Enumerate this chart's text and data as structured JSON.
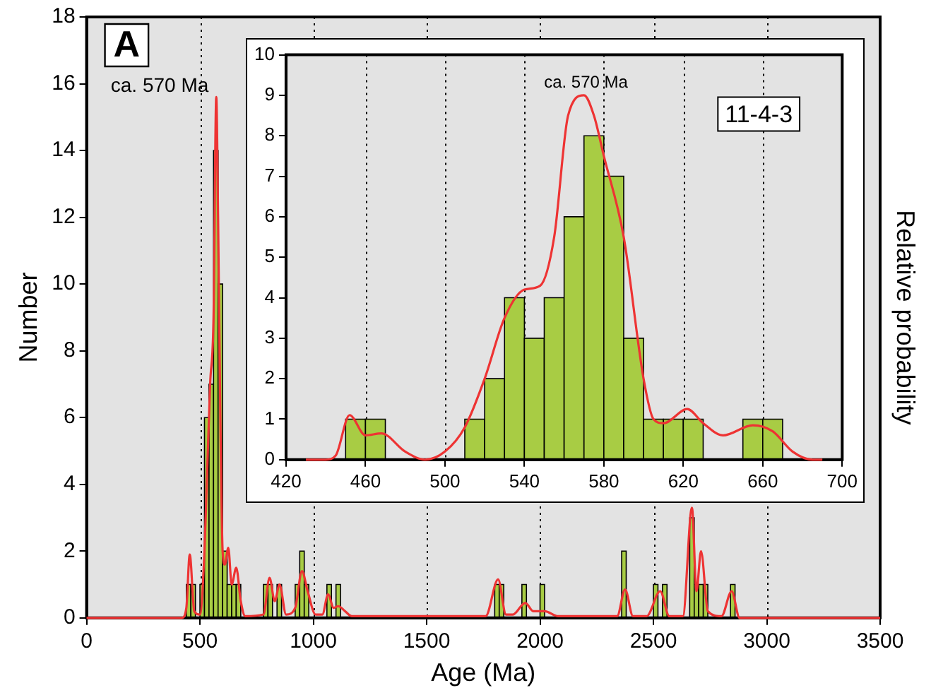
{
  "chart_data": [
    {
      "type": "histogram",
      "xlabel": "Age (Ma)",
      "ylabel": "Number",
      "y2label": "Relative probability",
      "xlim": [
        0,
        3500
      ],
      "xticks": [
        0,
        500,
        1000,
        1500,
        2000,
        2500,
        3000,
        3500
      ],
      "ylim": [
        0,
        18
      ],
      "yticks": [
        0,
        2,
        4,
        6,
        8,
        10,
        12,
        14,
        16,
        18
      ],
      "grid": "x",
      "annotations": [
        "A",
        "ca. 570 Ma"
      ],
      "series": [
        {
          "color": "#a8cc44",
          "bins": [
            440,
            460,
            480,
            500,
            520,
            540,
            560,
            580,
            600,
            620,
            640,
            660,
            680,
            780,
            800,
            820,
            840,
            860,
            920,
            940,
            960,
            980,
            1060,
            1080,
            1100,
            1120,
            1800,
            1820,
            1840,
            1920,
            1940,
            2000,
            2020,
            2360,
            2380,
            2500,
            2520,
            2540,
            2560,
            2660,
            2680,
            2700,
            2720,
            2740,
            2840,
            2860
          ],
          "values": [
            1,
            1,
            0,
            1,
            6,
            7,
            14,
            10,
            2,
            1,
            1,
            1,
            0,
            1,
            1,
            0,
            1,
            0,
            1,
            2,
            1,
            0,
            1,
            0,
            1,
            0,
            1,
            1,
            0,
            1,
            0,
            1,
            0,
            2,
            0,
            1,
            0,
            1,
            0,
            3,
            1,
            1,
            1,
            0,
            1
          ]
        },
        {
          "type": "line",
          "color": "#ee3333",
          "x": [
            0,
            420,
            440,
            455,
            475,
            500,
            520,
            530,
            545,
            560,
            572,
            580,
            590,
            600,
            610,
            625,
            640,
            660,
            680,
            700,
            780,
            807,
            830,
            851,
            880,
            920,
            950,
            975,
            1010,
            1040,
            1065,
            1090,
            1110,
            1140,
            1170,
            1760,
            1815,
            1850,
            1880,
            1935,
            1970,
            2020,
            2080,
            2340,
            2375,
            2410,
            2470,
            2530,
            2570,
            2630,
            2670,
            2690,
            2710,
            2740,
            2800,
            2845,
            2880,
            3500
          ],
          "values": [
            0,
            0,
            0.3,
            1.9,
            0.2,
            0.1,
            2,
            4,
            7,
            9,
            15.6,
            12,
            6,
            2,
            1.6,
            2.1,
            1,
            1.5,
            0.5,
            0.05,
            0.1,
            1.2,
            0.5,
            1,
            0.1,
            0.3,
            1.4,
            0.8,
            0.1,
            0.1,
            0.7,
            0.3,
            0.35,
            0.2,
            0.05,
            0.05,
            1.15,
            0.1,
            0.1,
            0.45,
            0.2,
            0.2,
            0.05,
            0.05,
            0.85,
            0.05,
            0.05,
            0.8,
            0.05,
            0.05,
            3.3,
            0.8,
            2,
            0.2,
            0.05,
            0.8,
            0,
            0
          ]
        }
      ]
    },
    {
      "type": "histogram",
      "xlim": [
        420,
        700
      ],
      "xticks": [
        420,
        460,
        500,
        540,
        580,
        620,
        660,
        700
      ],
      "ylim": [
        0,
        10
      ],
      "yticks": [
        0,
        1,
        2,
        3,
        4,
        5,
        6,
        7,
        8,
        9,
        10
      ],
      "grid": "x",
      "annotations": [
        "ca. 570 Ma",
        "11-4-3"
      ],
      "series": [
        {
          "color": "#a8cc44",
          "bins": [
            450,
            460,
            470,
            510,
            520,
            530,
            540,
            550,
            560,
            570,
            580,
            590,
            600,
            610,
            620,
            630,
            650,
            660,
            670
          ],
          "values": [
            1,
            1,
            0,
            1,
            2,
            4,
            3,
            4,
            6,
            8,
            7,
            3,
            1,
            1,
            1,
            0,
            1,
            1
          ]
        },
        {
          "type": "line",
          "color": "#ee3333",
          "x": [
            430,
            440,
            445,
            452,
            460,
            468,
            480,
            490,
            500,
            510,
            520,
            530,
            540,
            548,
            555,
            562,
            570,
            575,
            580,
            590,
            600,
            605,
            610,
            622,
            630,
            640,
            655,
            665,
            675,
            685,
            690
          ],
          "values": [
            0,
            0,
            0.1,
            1.1,
            0.6,
            0.65,
            0.2,
            0,
            0.2,
            0.8,
            2,
            3.5,
            4.2,
            4.3,
            5.5,
            8.5,
            9,
            8.5,
            7.5,
            5.5,
            2,
            1,
            0.9,
            1.25,
            0.9,
            0.6,
            0.85,
            0.7,
            0.2,
            0,
            0
          ]
        }
      ]
    }
  ]
}
